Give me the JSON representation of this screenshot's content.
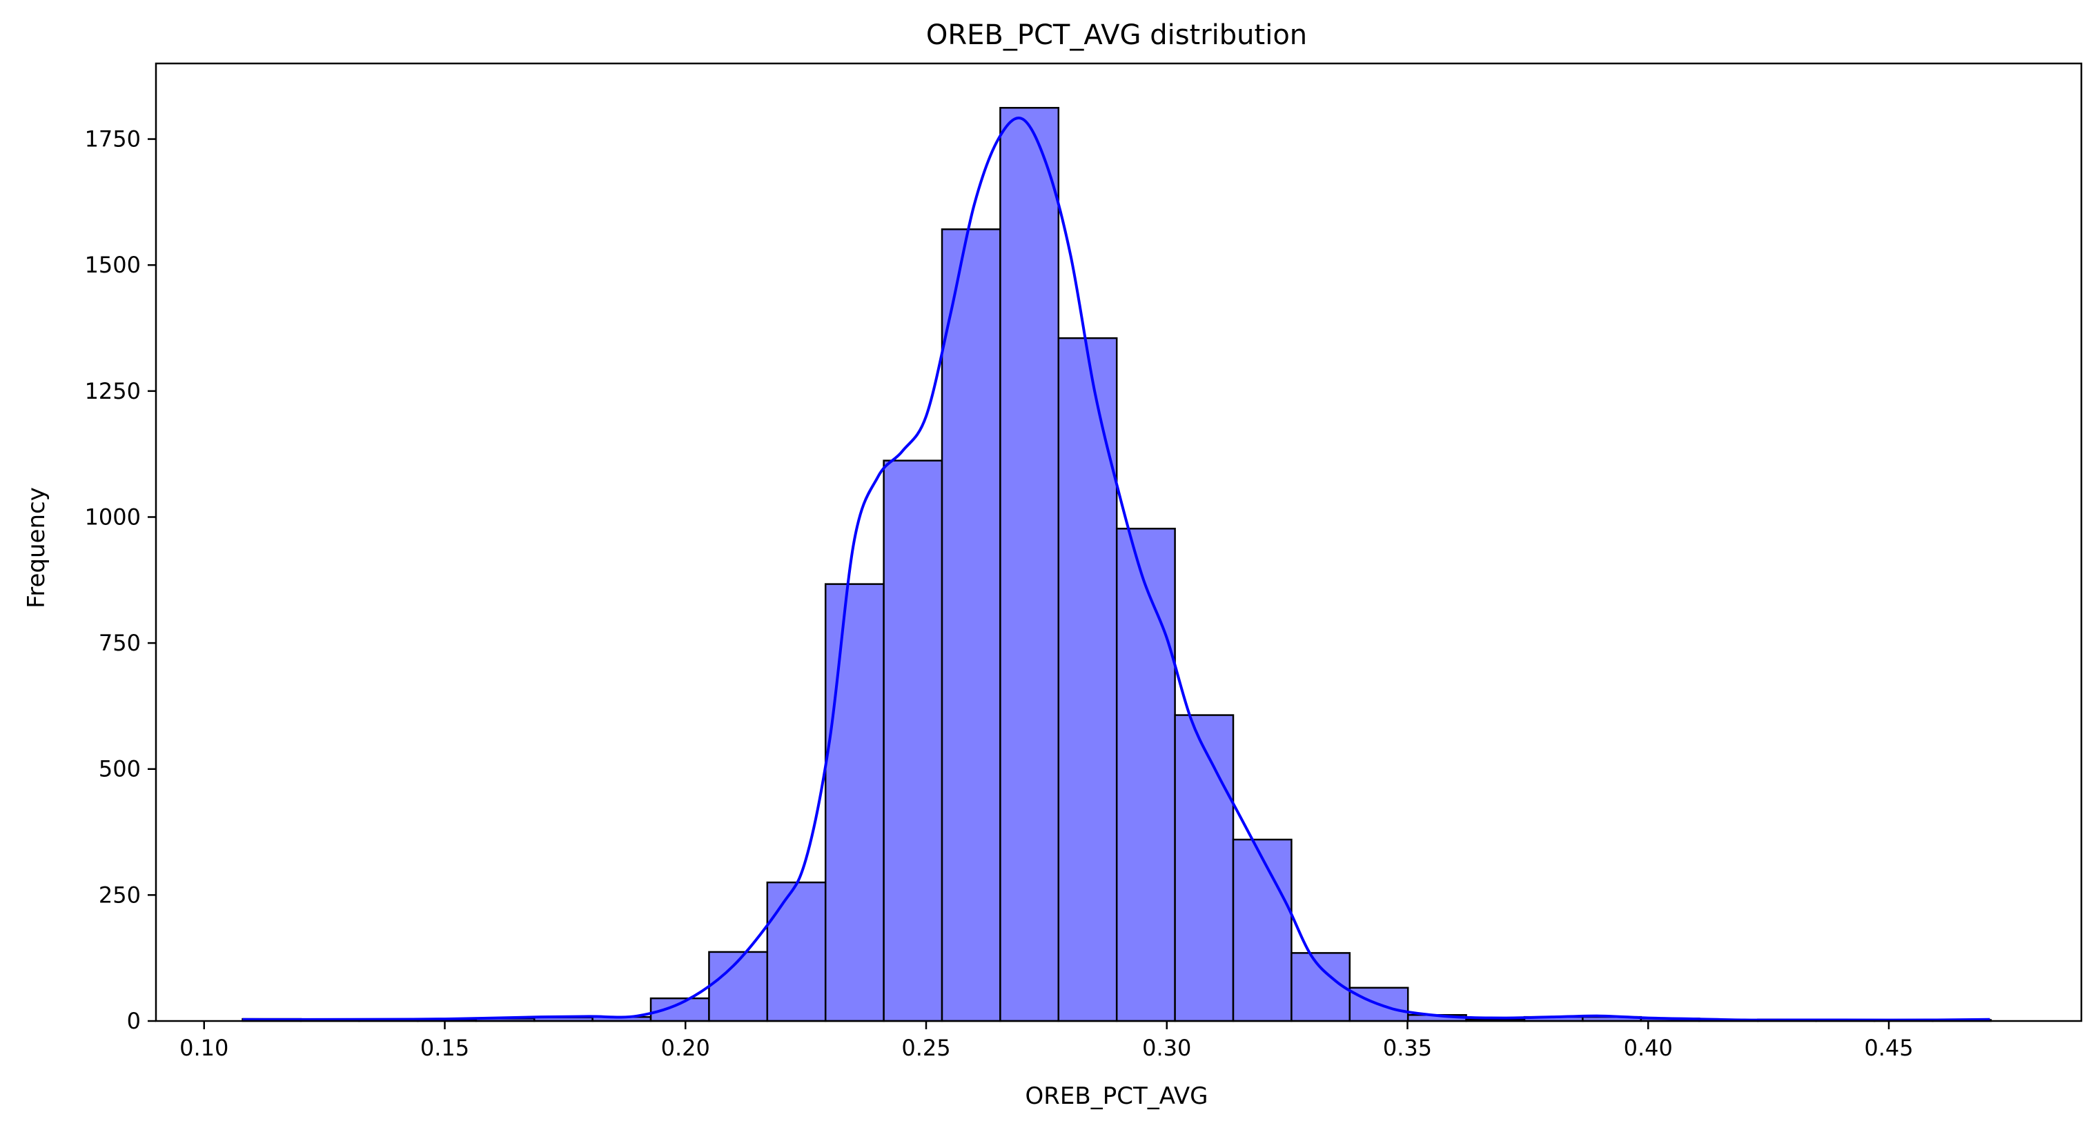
{
  "chart_data": {
    "type": "bar",
    "subtype": "histogram_with_kde",
    "title": "OREB_PCT_AVG distribution",
    "xlabel": "OREB_PCT_AVG",
    "ylabel": "Frequency",
    "xlim": [
      0.09,
      0.49
    ],
    "ylim": [
      0,
      1900
    ],
    "x_ticks": [
      0.1,
      0.15,
      0.2,
      0.25,
      0.3,
      0.35,
      0.4,
      0.45
    ],
    "x_tick_labels": [
      "0.10",
      "0.15",
      "0.20",
      "0.25",
      "0.30",
      "0.35",
      "0.40",
      "0.45"
    ],
    "y_ticks": [
      0,
      250,
      500,
      750,
      1000,
      1250,
      1500,
      1750
    ],
    "y_tick_labels": [
      "0",
      "250",
      "500",
      "750",
      "1000",
      "1250",
      "1500",
      "1750"
    ],
    "bar_color": "#8080ff",
    "bar_edge_color": "#000000",
    "kde_color": "#0000ff",
    "grid": false,
    "bins": [
      {
        "x0": 0.108,
        "x1": 0.1201,
        "count": 4
      },
      {
        "x0": 0.1201,
        "x1": 0.1322,
        "count": 2
      },
      {
        "x0": 0.1322,
        "x1": 0.1444,
        "count": 3
      },
      {
        "x0": 0.1444,
        "x1": 0.1565,
        "count": 3
      },
      {
        "x0": 0.1565,
        "x1": 0.1686,
        "count": 5
      },
      {
        "x0": 0.1686,
        "x1": 0.1807,
        "count": 7
      },
      {
        "x0": 0.1807,
        "x1": 0.1928,
        "count": 8
      },
      {
        "x0": 0.1928,
        "x1": 0.2049,
        "count": 45
      },
      {
        "x0": 0.2049,
        "x1": 0.217,
        "count": 137
      },
      {
        "x0": 0.217,
        "x1": 0.2291,
        "count": 275
      },
      {
        "x0": 0.2291,
        "x1": 0.2412,
        "count": 867
      },
      {
        "x0": 0.2412,
        "x1": 0.2533,
        "count": 1112
      },
      {
        "x0": 0.2533,
        "x1": 0.2654,
        "count": 1571
      },
      {
        "x0": 0.2654,
        "x1": 0.2775,
        "count": 1812
      },
      {
        "x0": 0.2775,
        "x1": 0.2896,
        "count": 1355
      },
      {
        "x0": 0.2896,
        "x1": 0.3017,
        "count": 977
      },
      {
        "x0": 0.3017,
        "x1": 0.3138,
        "count": 607
      },
      {
        "x0": 0.3138,
        "x1": 0.3259,
        "count": 360
      },
      {
        "x0": 0.3259,
        "x1": 0.338,
        "count": 135
      },
      {
        "x0": 0.338,
        "x1": 0.3501,
        "count": 66
      },
      {
        "x0": 0.3501,
        "x1": 0.3622,
        "count": 12
      },
      {
        "x0": 0.3622,
        "x1": 0.3743,
        "count": 3
      },
      {
        "x0": 0.3743,
        "x1": 0.3864,
        "count": 8
      },
      {
        "x0": 0.3864,
        "x1": 0.3985,
        "count": 8
      },
      {
        "x0": 0.3985,
        "x1": 0.4106,
        "count": 5
      },
      {
        "x0": 0.4106,
        "x1": 0.4228,
        "count": 2
      },
      {
        "x0": 0.4228,
        "x1": 0.4349,
        "count": 3
      },
      {
        "x0": 0.4349,
        "x1": 0.447,
        "count": 2
      },
      {
        "x0": 0.447,
        "x1": 0.4591,
        "count": 2
      },
      {
        "x0": 0.4591,
        "x1": 0.4712,
        "count": 2
      }
    ],
    "kde": [
      [
        0.108,
        3
      ],
      [
        0.13,
        3
      ],
      [
        0.15,
        4
      ],
      [
        0.17,
        8
      ],
      [
        0.18,
        9
      ],
      [
        0.19,
        10
      ],
      [
        0.2,
        40
      ],
      [
        0.21,
        110
      ],
      [
        0.22,
        230
      ],
      [
        0.225,
        320
      ],
      [
        0.23,
        560
      ],
      [
        0.235,
        950
      ],
      [
        0.24,
        1080
      ],
      [
        0.245,
        1130
      ],
      [
        0.25,
        1200
      ],
      [
        0.255,
        1400
      ],
      [
        0.26,
        1620
      ],
      [
        0.265,
        1750
      ],
      [
        0.27,
        1790
      ],
      [
        0.275,
        1700
      ],
      [
        0.28,
        1520
      ],
      [
        0.285,
        1250
      ],
      [
        0.29,
        1050
      ],
      [
        0.295,
        880
      ],
      [
        0.3,
        760
      ],
      [
        0.305,
        600
      ],
      [
        0.31,
        500
      ],
      [
        0.315,
        410
      ],
      [
        0.32,
        320
      ],
      [
        0.325,
        230
      ],
      [
        0.33,
        130
      ],
      [
        0.335,
        80
      ],
      [
        0.34,
        50
      ],
      [
        0.345,
        30
      ],
      [
        0.35,
        18
      ],
      [
        0.36,
        8
      ],
      [
        0.37,
        6
      ],
      [
        0.38,
        8
      ],
      [
        0.39,
        10
      ],
      [
        0.4,
        6
      ],
      [
        0.41,
        4
      ],
      [
        0.42,
        2
      ],
      [
        0.43,
        2
      ],
      [
        0.44,
        2
      ],
      [
        0.46,
        2
      ],
      [
        0.471,
        3
      ]
    ]
  }
}
